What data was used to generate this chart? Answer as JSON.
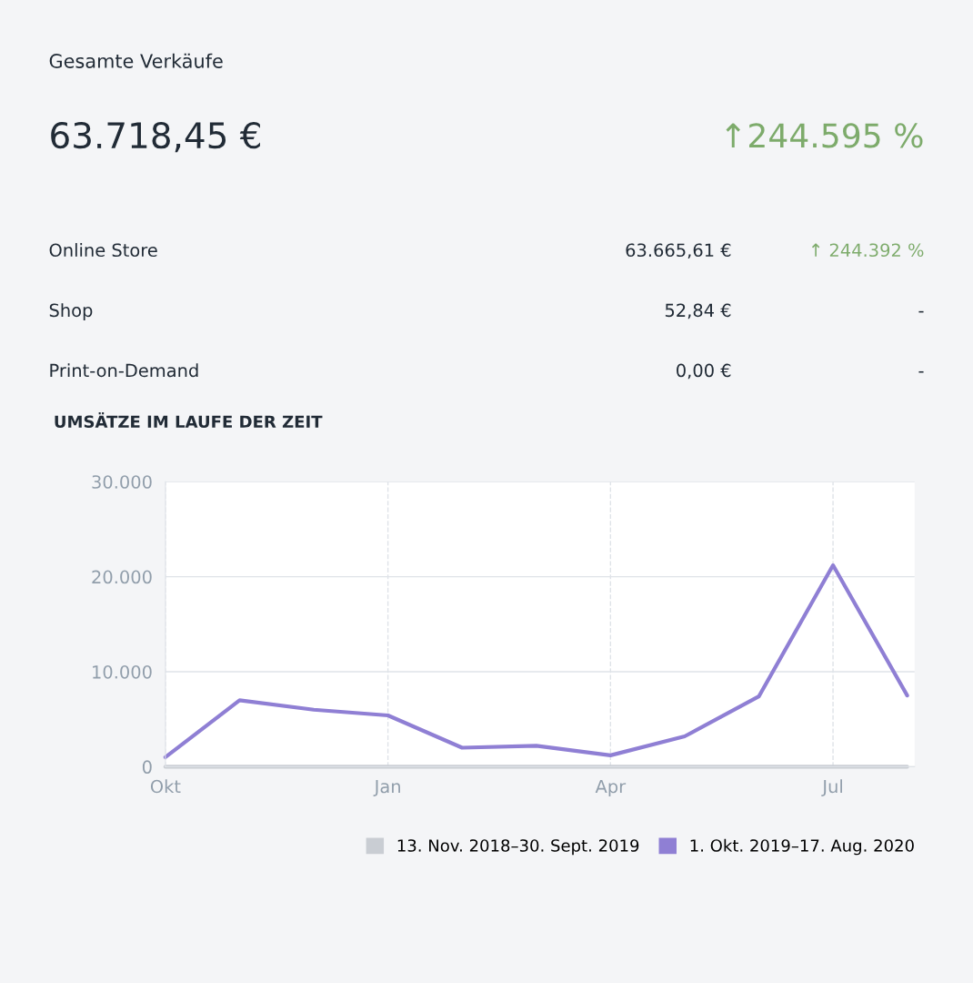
{
  "chart_data": [
    {
      "type": "other",
      "title": "Gesamte Verkäufe",
      "annotations": [
        "63.718,45 €",
        "↑244.595 %",
        "Online Store",
        "63.665,61 €",
        "↑ 244.392 %",
        "Shop",
        "52,84 €",
        "-",
        "Print-on-Demand",
        "0,00 €",
        "-"
      ]
    },
    {
      "type": "line",
      "title": "UMSÄTZE IM LAUFE DER ZEIT",
      "categories": [
        "Okt",
        null,
        null,
        "Jan",
        null,
        null,
        "Apr",
        null,
        null,
        "Jul",
        null
      ],
      "series": [
        {
          "name": "13. Nov. 2018–30. Sept. 2019",
          "color": "#c9cdd3",
          "values": [
            0,
            0,
            0,
            0,
            0,
            0,
            0,
            0,
            0,
            0,
            0
          ]
        },
        {
          "name": "1. Okt. 2019–17. Aug. 2020",
          "color": "#8f7fd4",
          "values": [
            1000,
            7000,
            6000,
            5400,
            2000,
            2200,
            1200,
            3200,
            7400,
            21200,
            7500
          ]
        }
      ],
      "ylim": [
        0,
        30000
      ],
      "yticks": [
        {
          "value": 0,
          "label": "0"
        },
        {
          "value": 10000,
          "label": "10.000"
        },
        {
          "value": 20000,
          "label": "20.000"
        },
        {
          "value": 30000,
          "label": "30.000"
        }
      ],
      "grid": true,
      "legend": "bottom right",
      "marker": "none",
      "line_style": "solid"
    }
  ]
}
